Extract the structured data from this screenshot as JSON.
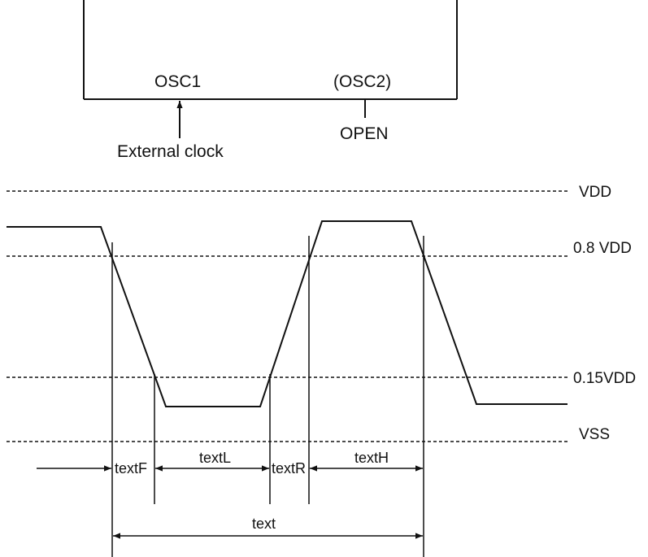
{
  "chip": {
    "osc1": "OSC1",
    "osc2": "(OSC2)",
    "open": "OPEN",
    "external_clock": "External clock"
  },
  "levels": {
    "vdd": "VDD",
    "v08": "0.8 VDD",
    "v015": "0.15VDD",
    "vss": "VSS"
  },
  "timing": {
    "fall": "textF",
    "low": "textL",
    "rise": "textR",
    "high": "textH",
    "period": "text"
  }
}
